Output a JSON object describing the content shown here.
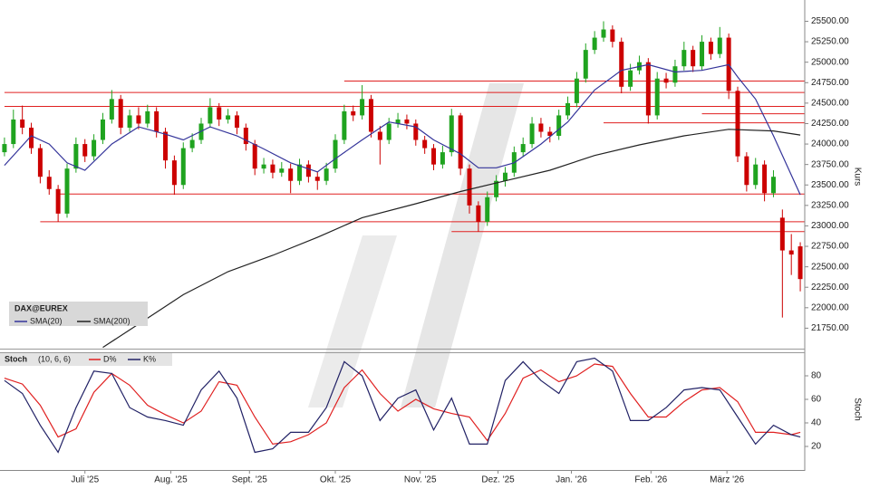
{
  "chart_data": [
    {
      "type": "candlestick",
      "legend_title": "DAX@EUREX",
      "y_label": "Kurs",
      "up_color": "#1fa31f",
      "down_color": "#cc0000",
      "open": [
        23900,
        24000,
        24300,
        24200,
        23950,
        23600,
        23450,
        23150,
        23700,
        24000,
        23850,
        24050,
        24300,
        24550,
        24200,
        24350,
        24250,
        24400,
        24150,
        23800,
        23500,
        23950,
        24050,
        24250,
        24450,
        24300,
        24350,
        24200,
        24000,
        23700,
        23750,
        23650,
        23700,
        23550,
        23750,
        23600,
        23550,
        23700,
        24050,
        24400,
        24350,
        24550,
        24150,
        24050,
        24250,
        24300,
        24250,
        24050,
        23950,
        23750,
        23900,
        24350,
        23700,
        23250,
        23050,
        23350,
        23550,
        23650,
        23900,
        24000,
        24250,
        24150,
        24100,
        24350,
        24500,
        24800,
        25150,
        25300,
        25400,
        25250,
        24700,
        24900,
        25000,
        24350,
        24800,
        24750,
        24950,
        25150,
        24950,
        25250,
        25100,
        25300,
        24650,
        23850,
        23500,
        23750,
        23400,
        23100,
        22700,
        22750
      ],
      "high": [
        24080,
        24420,
        24470,
        24260,
        24000,
        23680,
        23500,
        23760,
        24080,
        24060,
        24120,
        24380,
        24660,
        24600,
        24420,
        24450,
        24480,
        24450,
        24200,
        23860,
        24020,
        24130,
        24320,
        24560,
        24500,
        24430,
        24400,
        24250,
        24050,
        23830,
        23810,
        23780,
        23760,
        23820,
        23800,
        23660,
        23770,
        24120,
        24480,
        24470,
        24720,
        24600,
        24220,
        24320,
        24380,
        24360,
        24300,
        24100,
        24000,
        23980,
        24430,
        24380,
        23750,
        23300,
        23420,
        23620,
        23720,
        23970,
        24080,
        24330,
        24320,
        24210,
        24420,
        24580,
        24880,
        25230,
        25380,
        25500,
        25450,
        25300,
        24980,
        25080,
        25050,
        24880,
        24870,
        25030,
        25250,
        25200,
        25330,
        25300,
        25430,
        25350,
        24700,
        23900,
        23830,
        23800,
        23680,
        23200,
        22900,
        22800
      ],
      "low": [
        23850,
        23950,
        24120,
        23880,
        23520,
        23380,
        23050,
        23100,
        23650,
        23780,
        23800,
        24000,
        24250,
        24120,
        24150,
        24180,
        24200,
        24080,
        23700,
        23380,
        23450,
        23900,
        24000,
        24200,
        24220,
        24250,
        24120,
        23920,
        23620,
        23640,
        23580,
        23600,
        23400,
        23500,
        23530,
        23440,
        23500,
        23650,
        24000,
        24280,
        24300,
        24080,
        23750,
        24000,
        24200,
        24180,
        23980,
        23880,
        23680,
        23700,
        23850,
        23620,
        23150,
        22930,
        23000,
        23300,
        23480,
        23600,
        23850,
        23950,
        24080,
        24020,
        24050,
        24300,
        24450,
        24750,
        25100,
        25250,
        25180,
        24620,
        24650,
        24850,
        24250,
        24300,
        24680,
        24700,
        24900,
        24880,
        24900,
        25030,
        25050,
        24550,
        23780,
        23420,
        23450,
        23300,
        23350,
        21880,
        22400,
        22200
      ],
      "close": [
        24000,
        24300,
        24200,
        23950,
        23600,
        23450,
        23150,
        23700,
        24000,
        23850,
        24050,
        24300,
        24550,
        24200,
        24350,
        24250,
        24400,
        24150,
        23800,
        23500,
        23950,
        24050,
        24250,
        24450,
        24300,
        24350,
        24200,
        24000,
        23700,
        23750,
        23650,
        23700,
        23550,
        23750,
        23600,
        23550,
        23700,
        24050,
        24400,
        24350,
        24550,
        24150,
        24050,
        24250,
        24300,
        24250,
        24050,
        23950,
        23750,
        23900,
        24350,
        23700,
        23250,
        23050,
        23350,
        23550,
        23650,
        23900,
        24000,
        24250,
        24150,
        24100,
        24350,
        24500,
        24800,
        25150,
        25300,
        25400,
        25250,
        24700,
        24900,
        25000,
        24350,
        24800,
        24750,
        24950,
        25150,
        24950,
        25250,
        25100,
        25300,
        24650,
        23850,
        23500,
        23750,
        23400,
        23600,
        22700,
        22650,
        22350
      ],
      "series": [
        {
          "name": "SMA(20)",
          "color": "#34349a",
          "x": [
            0,
            3,
            5,
            7,
            9,
            12,
            15,
            18,
            20,
            23,
            26,
            29,
            32,
            35,
            37,
            40,
            43,
            46,
            48,
            51,
            53,
            55,
            57,
            60,
            63,
            66,
            69,
            72,
            75,
            78,
            81,
            82,
            84,
            86,
            89
          ],
          "values": [
            23740,
            24100,
            24000,
            23770,
            23680,
            24000,
            24210,
            24120,
            24050,
            24210,
            24100,
            23940,
            23770,
            23660,
            23820,
            24050,
            24270,
            24210,
            24050,
            23880,
            23710,
            23710,
            23770,
            24000,
            24270,
            24660,
            24900,
            24970,
            24880,
            24900,
            24970,
            24820,
            24550,
            24100,
            23380
          ]
        },
        {
          "name": "SMA(200)",
          "color": "#222222",
          "x": [
            11,
            15,
            20,
            25,
            30,
            35,
            40,
            46,
            51,
            56,
            61,
            66,
            71,
            76,
            81,
            86,
            89
          ],
          "values": [
            21516,
            21800,
            22160,
            22440,
            22640,
            22860,
            23100,
            23270,
            23420,
            23550,
            23680,
            23860,
            23990,
            24100,
            24180,
            24160,
            24110
          ]
        }
      ],
      "hlines": {
        "color": "#e02020",
        "values": [
          24770,
          24630,
          24460,
          24370,
          24260,
          23390,
          23050,
          22930
        ],
        "start": [
          38,
          0,
          0,
          78,
          67,
          6,
          4,
          50
        ]
      },
      "xlim": [
        -0.5,
        89.5
      ],
      "ylim": [
        21500,
        25760
      ],
      "yticks": [
        {
          "value": 21750,
          "label": "21750.00"
        },
        {
          "value": 22000,
          "label": "22000.00"
        },
        {
          "value": 22250,
          "label": "22250.00"
        },
        {
          "value": 22500,
          "label": "22500.00"
        },
        {
          "value": 22750,
          "label": "22750.00"
        },
        {
          "value": 23000,
          "label": "23000.00"
        },
        {
          "value": 23250,
          "label": "23250.00"
        },
        {
          "value": 23500,
          "label": "23500.00"
        },
        {
          "value": 23750,
          "label": "23750.00"
        },
        {
          "value": 24000,
          "label": "24000.00"
        },
        {
          "value": 24250,
          "label": "24250.00"
        },
        {
          "value": 24500,
          "label": "24500.00"
        },
        {
          "value": 24750,
          "label": "24750.00"
        },
        {
          "value": 25000,
          "label": "25000.00"
        },
        {
          "value": 25250,
          "label": "25250.00"
        },
        {
          "value": 25500,
          "label": "25500.00"
        }
      ]
    },
    {
      "type": "line",
      "title": "Stoch",
      "params": "(10, 6, 6)",
      "y_label": "Stoch",
      "x": [
        0,
        2,
        4,
        6,
        8,
        10,
        12,
        14,
        16,
        18,
        20,
        22,
        24,
        26,
        28,
        30,
        32,
        34,
        36,
        38,
        40,
        42,
        44,
        46,
        48,
        50,
        52,
        54,
        56,
        58,
        60,
        62,
        64,
        66,
        68,
        70,
        72,
        74,
        76,
        78,
        80,
        82,
        84,
        86,
        88,
        89
      ],
      "series": [
        {
          "name": "D%",
          "color": "#e02020",
          "values": [
            78,
            73,
            55,
            28,
            35,
            66,
            82,
            72,
            55,
            47,
            40,
            50,
            75,
            72,
            45,
            22,
            24,
            30,
            40,
            70,
            85,
            65,
            50,
            60,
            52,
            48,
            45,
            25,
            48,
            78,
            85,
            75,
            80,
            90,
            88,
            65,
            45,
            45,
            58,
            68,
            70,
            58,
            32,
            32,
            30,
            32
          ]
        },
        {
          "name": "K%",
          "color": "#222266",
          "values": [
            76,
            65,
            38,
            15,
            53,
            84,
            82,
            53,
            45,
            42,
            38,
            68,
            84,
            61,
            15,
            18,
            32,
            32,
            53,
            92,
            80,
            42,
            61,
            68,
            34,
            61,
            22,
            22,
            76,
            92,
            76,
            65,
            92,
            95,
            84,
            42,
            42,
            53,
            68,
            70,
            68,
            45,
            22,
            38,
            30,
            28
          ]
        }
      ],
      "xlim": [
        -0.5,
        89.5
      ],
      "ylim": [
        0,
        100
      ],
      "yticks": [
        20,
        40,
        60,
        80
      ],
      "xticks": [
        {
          "value": 9,
          "label": "Juli '25"
        },
        {
          "value": 18.6,
          "label": "Aug. '25"
        },
        {
          "value": 27.4,
          "label": "Sept. '25"
        },
        {
          "value": 37,
          "label": "Okt. '25"
        },
        {
          "value": 46.5,
          "label": "Nov. '25"
        },
        {
          "value": 55.2,
          "label": "Dez. '25"
        },
        {
          "value": 63.4,
          "label": "Jan. '26"
        },
        {
          "value": 72.3,
          "label": "Feb. '26"
        },
        {
          "value": 80.8,
          "label": "März '26"
        }
      ]
    }
  ]
}
